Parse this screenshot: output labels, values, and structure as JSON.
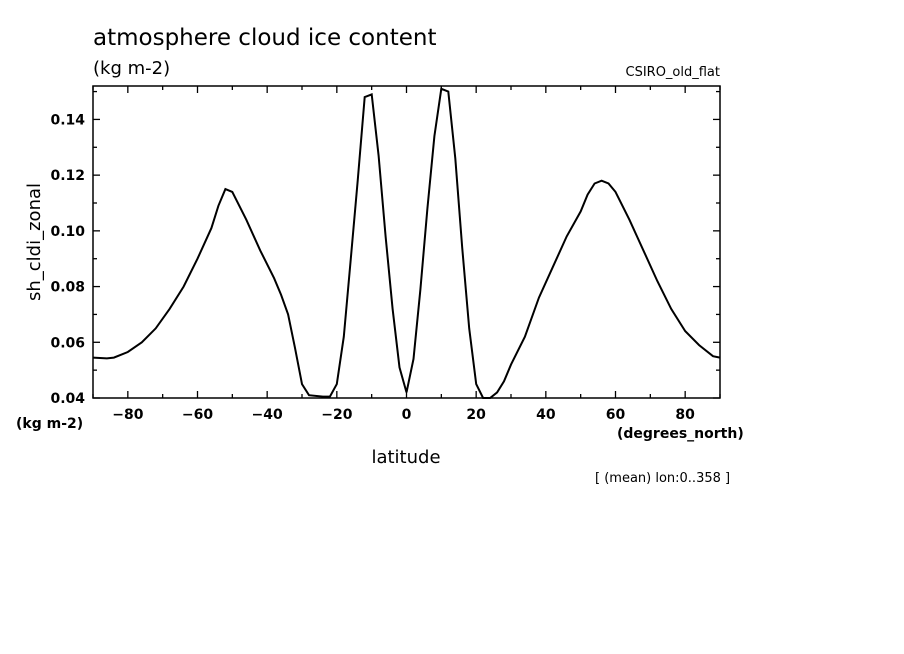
{
  "chart_data": {
    "type": "line",
    "title": "atmosphere cloud ice content",
    "subtitle": "(kg m-2)",
    "model": "CSIRO_old_flat",
    "xlabel": "latitude",
    "x_units": "(degrees_north)",
    "ylabel": "sh_cldi_zonal",
    "y_units": "(kg m-2)",
    "footnote": "[ (mean) lon:0..358 ]",
    "xlim": [
      -90,
      90
    ],
    "ylim": [
      0.04,
      0.152
    ],
    "xticks": [
      -80,
      -60,
      -40,
      -20,
      0,
      20,
      40,
      60,
      80
    ],
    "xtick_labels": [
      "−80",
      "−60",
      "−40",
      "−20",
      "0",
      "20",
      "40",
      "60",
      "80"
    ],
    "yticks": [
      0.04,
      0.06,
      0.08,
      0.1,
      0.12,
      0.14
    ],
    "ytick_labels": [
      "0.04",
      "0.06",
      "0.08",
      "0.10",
      "0.12",
      "0.14"
    ],
    "grid": false,
    "series": [
      {
        "x": [
          -90,
          -86,
          -84,
          -80,
          -76,
          -72,
          -68,
          -64,
          -60,
          -56,
          -54,
          -52,
          -50,
          -46,
          -42,
          -38,
          -36,
          -34,
          -32,
          -30,
          -28,
          -24,
          -22,
          -20,
          -18,
          -16,
          -14,
          -12,
          -10,
          -8,
          -6,
          -4,
          -2,
          0,
          2,
          4,
          6,
          8,
          10,
          12,
          14,
          16,
          18,
          20,
          22,
          24,
          26,
          28,
          30,
          34,
          38,
          42,
          46,
          50,
          52,
          54,
          56,
          58,
          60,
          64,
          68,
          72,
          76,
          80,
          84,
          88,
          90
        ],
        "y": [
          0.0545,
          0.0542,
          0.0545,
          0.0565,
          0.06,
          0.065,
          0.072,
          0.08,
          0.09,
          0.101,
          0.109,
          0.115,
          0.114,
          0.104,
          0.093,
          0.083,
          0.077,
          0.07,
          0.058,
          0.045,
          0.041,
          0.0405,
          0.0405,
          0.045,
          0.062,
          0.09,
          0.118,
          0.148,
          0.149,
          0.127,
          0.098,
          0.072,
          0.051,
          0.042,
          0.054,
          0.079,
          0.108,
          0.134,
          0.151,
          0.15,
          0.126,
          0.094,
          0.065,
          0.045,
          0.04,
          0.04,
          0.042,
          0.046,
          0.052,
          0.062,
          0.076,
          0.087,
          0.098,
          0.107,
          0.113,
          0.117,
          0.118,
          0.117,
          0.114,
          0.104,
          0.093,
          0.082,
          0.072,
          0.064,
          0.059,
          0.055,
          0.0545
        ]
      }
    ]
  }
}
